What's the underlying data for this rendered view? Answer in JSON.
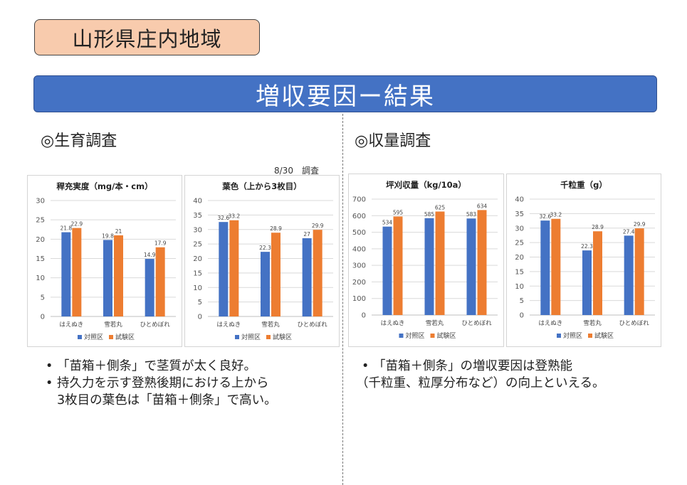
{
  "region_title": "山形県庄内地域",
  "banner_title": "増収要因ー結果",
  "left_section": {
    "heading": "◎生育調査",
    "survey_note": "8/30　調査",
    "bullets": [
      {
        "lines": [
          "「苗箱＋側条」で茎質が太く良好。"
        ]
      },
      {
        "lines": [
          "持久力を示す登熟後期における上から",
          "3枚目の葉色は「苗箱＋側条」で高い。"
        ]
      }
    ]
  },
  "right_section": {
    "heading": "◎収量調査",
    "bullets": [
      {
        "lines": [
          "「苗箱＋側条」の増収要因は登熟能"
        ]
      }
    ],
    "continuation": "（千粒重、粒厚分布など）の向上といえる。"
  },
  "colors": {
    "control": "#4472c4",
    "test": "#ed7d31",
    "banner": "#4472c4",
    "badge": "#f8cbad"
  },
  "chart_data": [
    {
      "type": "bar",
      "title": "稈充実度（mg/本・cm）",
      "categories": [
        "はえぬき",
        "雪若丸",
        "ひとめぼれ"
      ],
      "series": [
        {
          "name": "対照区",
          "values": [
            21.8,
            19.8,
            14.9
          ]
        },
        {
          "name": "試験区",
          "values": [
            22.9,
            21,
            17.9
          ]
        }
      ],
      "ylim": [
        0,
        30
      ],
      "yticks": [
        0,
        5,
        10,
        15,
        20,
        25,
        30
      ],
      "grid": true,
      "legend": "bottom"
    },
    {
      "type": "bar",
      "title": "葉色（上から3枚目）",
      "categories": [
        "はえぬき",
        "雪若丸",
        "ひとめぼれ"
      ],
      "series": [
        {
          "name": "対照区",
          "values": [
            32.6,
            22.3,
            27
          ]
        },
        {
          "name": "試験区",
          "values": [
            33.2,
            28.9,
            29.9
          ]
        }
      ],
      "ylim": [
        0,
        40
      ],
      "yticks": [
        0,
        5,
        10,
        15,
        20,
        25,
        30,
        35,
        40
      ],
      "grid": true,
      "legend": "bottom"
    },
    {
      "type": "bar",
      "title": "坪刈収量（kg/10a）",
      "categories": [
        "はえぬき",
        "雪若丸",
        "ひとめぼれ"
      ],
      "series": [
        {
          "name": "対照区",
          "values": [
            534,
            585,
            583
          ]
        },
        {
          "name": "試験区",
          "values": [
            595,
            625,
            634
          ]
        }
      ],
      "ylim": [
        0,
        700
      ],
      "yticks": [
        0,
        100,
        200,
        300,
        400,
        500,
        600,
        700
      ],
      "grid": true,
      "legend": "bottom"
    },
    {
      "type": "bar",
      "title": "千粒重（g）",
      "categories": [
        "はえぬき",
        "雪若丸",
        "ひとめぼれ"
      ],
      "series": [
        {
          "name": "対照区",
          "values": [
            32.6,
            22.3,
            27.4
          ]
        },
        {
          "name": "試験区",
          "values": [
            33.2,
            28.9,
            29.9
          ]
        }
      ],
      "ylim": [
        0,
        40
      ],
      "yticks": [
        0,
        5,
        10,
        15,
        20,
        25,
        30,
        35,
        40
      ],
      "grid": true,
      "legend": "bottom"
    }
  ]
}
